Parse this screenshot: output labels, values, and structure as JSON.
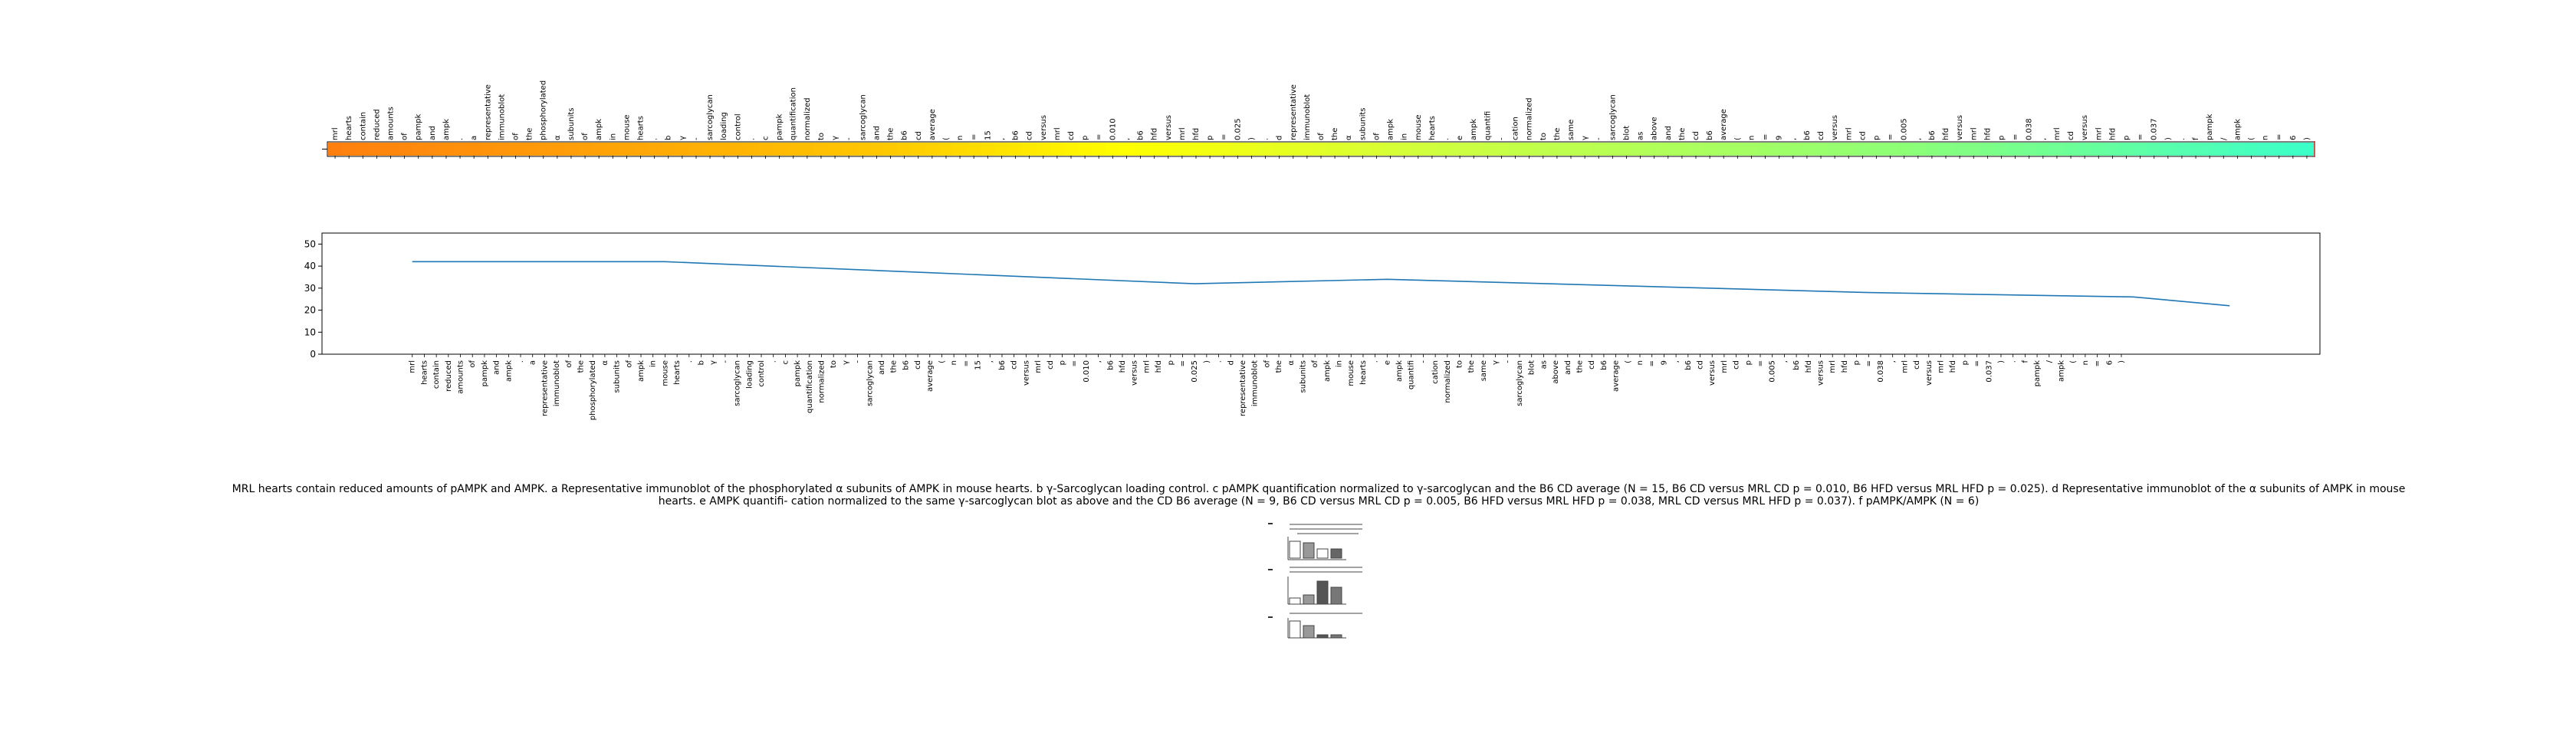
{
  "token_strip": {
    "tokens": [
      "mrl",
      "hearts",
      "contain",
      "reduced",
      "amounts",
      "of",
      "pampk",
      "and",
      "ampk",
      ".",
      "a",
      "representative",
      "immunoblot",
      "of",
      "the",
      "phosphorylated",
      "α",
      "subunits",
      "of",
      "ampk",
      "in",
      "mouse",
      "hearts",
      ".",
      "b",
      "γ",
      "-",
      "sarcoglycan",
      "loading",
      "control",
      ".",
      "c",
      "pampk",
      "quantification",
      "normalized",
      "to",
      "γ",
      "-",
      "sarcoglycan",
      "and",
      "the",
      "b6",
      "cd",
      "average",
      "(",
      "n",
      "=",
      "15",
      ",",
      "b6",
      "cd",
      "versus",
      "mrl",
      "cd",
      "p",
      "=",
      "0.010",
      ",",
      "b6",
      "hfd",
      "versus",
      "mrl",
      "hfd",
      "p",
      "=",
      "0.025",
      ")",
      ".",
      "d",
      "representative",
      "immunoblot",
      "of",
      "the",
      "α",
      "subunits",
      "of",
      "ampk",
      "in",
      "mouse",
      "hearts",
      ".",
      "e",
      "ampk",
      "quantifi",
      "-",
      "cation",
      "normalized",
      "to",
      "the",
      "same",
      "γ",
      "-",
      "sarcoglycan",
      "blot",
      "as",
      "above",
      "and",
      "the",
      "cd",
      "b6",
      "average",
      "(",
      "n",
      "=",
      "9",
      ",",
      "b6",
      "cd",
      "versus",
      "mrl",
      "cd",
      "p",
      "=",
      "0.005",
      ",",
      "b6",
      "hfd",
      "versus",
      "mrl",
      "hfd",
      "p",
      "=",
      "0.038",
      ",",
      "mrl",
      "cd",
      "versus",
      "mrl",
      "hfd",
      "p",
      "=",
      "0.037",
      ")",
      ".",
      "f",
      "pampk",
      "/",
      "ampk",
      "(",
      "n",
      "=",
      "6",
      ")"
    ]
  },
  "chart_data": {
    "type": "line",
    "y_ticks": [
      0,
      10,
      20,
      30,
      40,
      50
    ],
    "ylim": [
      0,
      55
    ],
    "x_count": 166,
    "x_tick_labels": [
      "mrl",
      "hearts",
      "contain",
      "reduced",
      "amounts",
      "of",
      "pampk",
      "and",
      "ampk",
      ".",
      "a",
      "representative",
      "immunoblot",
      "of",
      "the",
      "phosphorylated",
      "α",
      "subunits",
      "of",
      "ampk",
      "in",
      "mouse",
      "hearts",
      ".",
      "b",
      "γ",
      "-",
      "sarcoglycan",
      "loading",
      "control",
      ".",
      "c",
      "pampk",
      "quantification",
      "normalized",
      "to",
      "γ",
      "-",
      "sarcoglycan",
      "and",
      "the",
      "b6",
      "cd",
      "average",
      "(",
      "n",
      "=",
      "15",
      ",",
      "b6",
      "cd",
      "versus",
      "mrl",
      "cd",
      "p",
      "=",
      "0.010",
      ",",
      "b6",
      "hfd",
      "versus",
      "mrl",
      "hfd",
      "p",
      "=",
      "0.025",
      ")",
      ".",
      "d",
      "representative",
      "immunoblot",
      "of",
      "the",
      "α",
      "subunits",
      "of",
      "ampk",
      "in",
      "mouse",
      "hearts",
      ".",
      "e",
      "ampk",
      "quantifi",
      "-",
      "cation",
      "normalized",
      "to",
      "the",
      "same",
      "γ",
      "-",
      "sarcoglycan",
      "blot",
      "as",
      "above",
      "and",
      "the",
      "cd",
      "b6",
      "average",
      "(",
      "n",
      "=",
      "9",
      ",",
      "b6",
      "cd",
      "versus",
      "mrl",
      "cd",
      "p",
      "=",
      "0.005",
      ",",
      "b6",
      "hfd",
      "versus",
      "mrl",
      "hfd",
      "p",
      "=",
      "0.038",
      ",",
      "mrl",
      "cd",
      "versus",
      "mrl",
      "hfd",
      "p",
      "=",
      "0.037",
      ")",
      ".",
      "f",
      "pampk",
      "/",
      "ampk",
      "(",
      "n",
      "=",
      "6",
      ")"
    ],
    "x_tick_start_index": 7,
    "series": [
      {
        "x": [
          7,
          28,
          50,
          72,
          88,
          108,
          128,
          150,
          158
        ],
        "y": [
          42,
          42,
          37,
          32,
          34,
          31,
          28,
          26,
          22
        ]
      }
    ],
    "grid": false,
    "legend": "none"
  },
  "caption": "MRL hearts contain reduced amounts of pAMPK and AMPK. a Representative immunoblot of the phosphorylated α subunits of AMPK in mouse hearts. b γ-Sarcoglycan loading control. c pAMPK quantification normalized to γ-sarcoglycan and the B6 CD average (N = 15, B6 CD versus MRL CD p = 0.010, B6 HFD versus MRL HFD p = 0.025). d Representative immunoblot of the α subunits of AMPK in mouse hearts. e AMPK quantifi- cation normalized to the same γ-sarcoglycan blot as above and the CD B6 average (N = 9, B6 CD versus MRL CD p = 0.005, B6 HFD versus MRL HFD p = 0.038, MRL CD versus MRL HFD p = 0.037). f pAMPK/AMPK (N = 6)"
}
